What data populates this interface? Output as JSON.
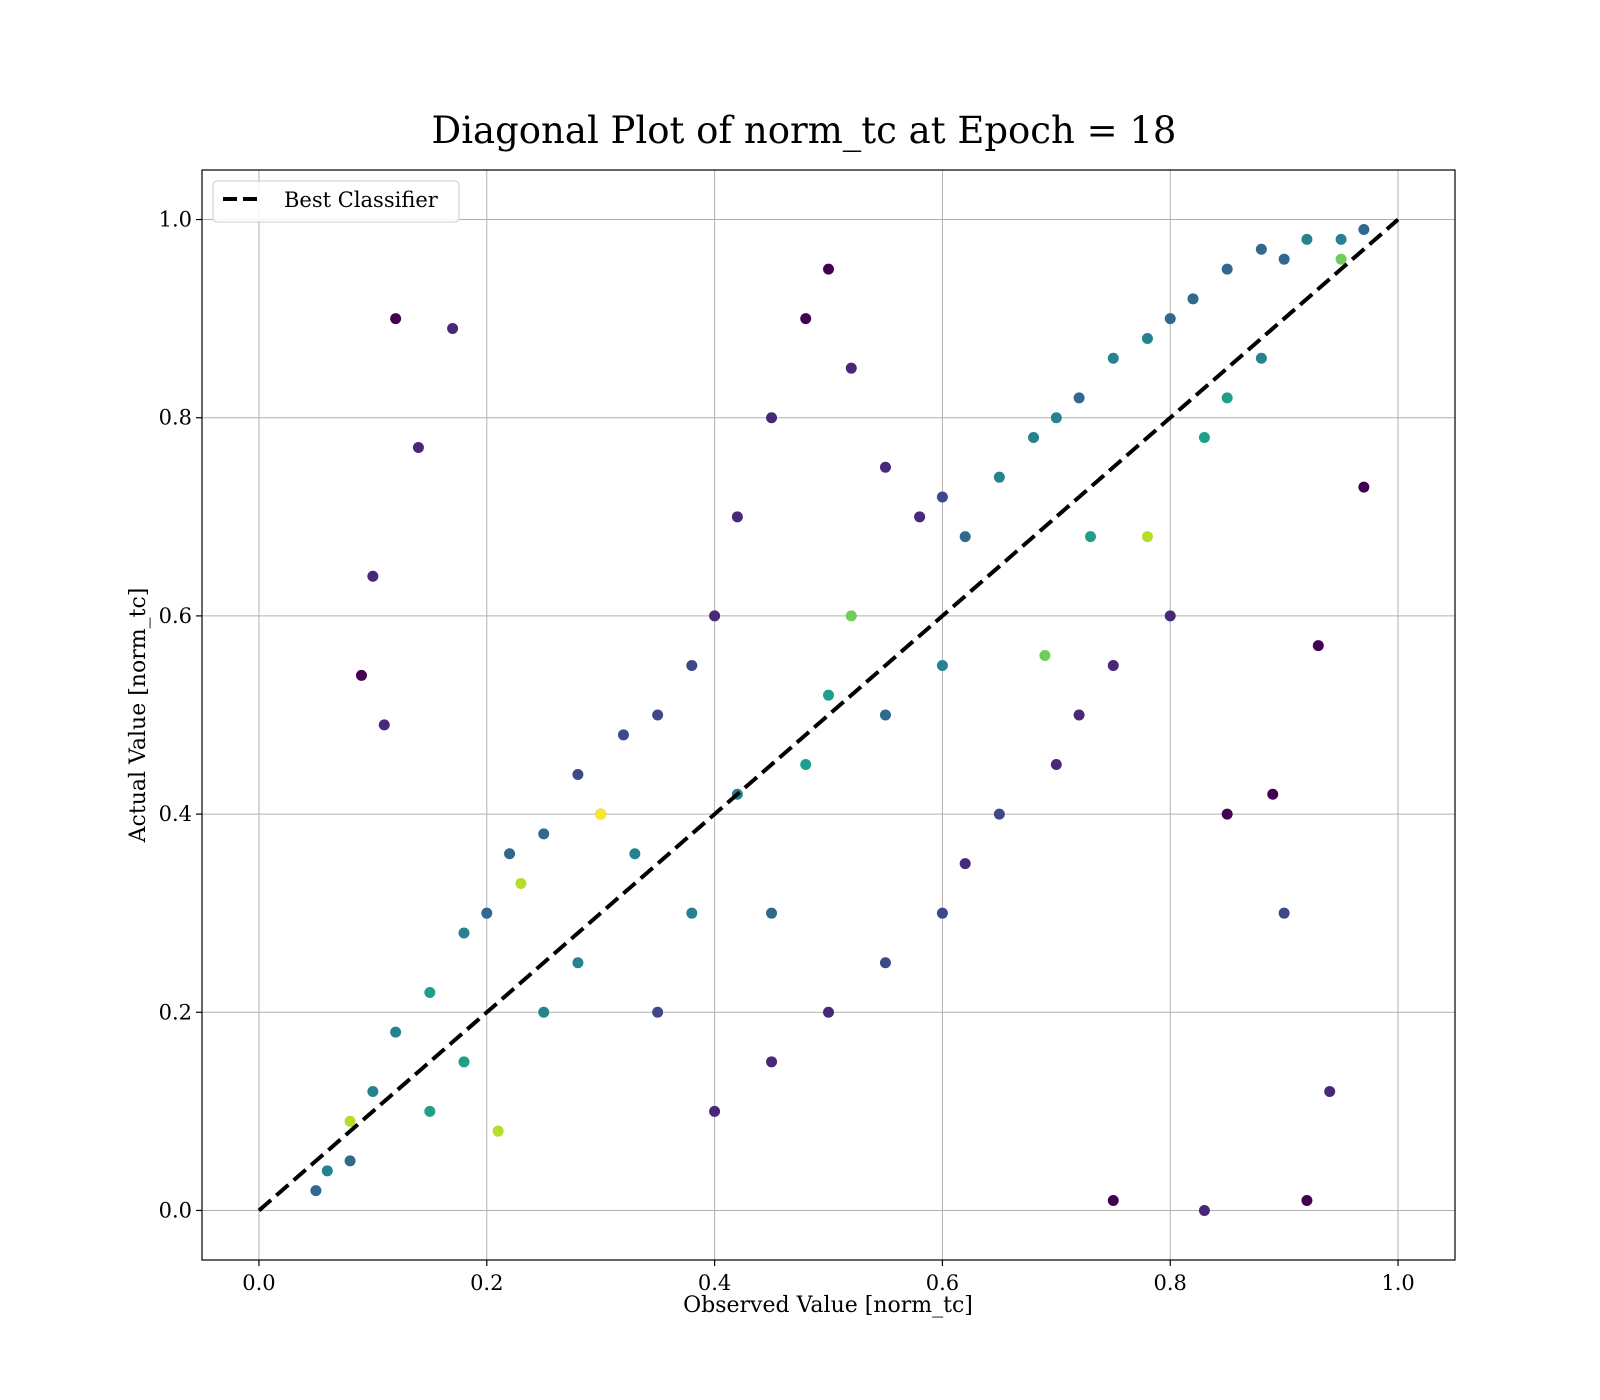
{
  "chart_data": {
    "type": "scatter",
    "title": "Diagonal Plot of norm_tc at Epoch = 18",
    "xlabel": "Observed Value [norm_tc]",
    "ylabel": "Actual Value [norm_tc]",
    "xlim": [
      -0.05,
      1.05
    ],
    "ylim": [
      -0.05,
      1.05
    ],
    "xticks": [
      0.0,
      0.2,
      0.4,
      0.6,
      0.8,
      1.0
    ],
    "yticks": [
      0.0,
      0.2,
      0.4,
      0.6,
      0.8,
      1.0
    ],
    "xtick_labels": [
      "0.0",
      "0.2",
      "0.4",
      "0.6",
      "0.8",
      "1.0"
    ],
    "ytick_labels": [
      "0.0",
      "0.2",
      "0.4",
      "0.6",
      "0.8",
      "1.0"
    ],
    "grid": true,
    "colormap": "viridis",
    "legend": {
      "placement": "upper-left",
      "entries": [
        "Best Classifier"
      ]
    },
    "reference_line": {
      "name": "Best Classifier",
      "x": [
        0.0,
        1.0
      ],
      "y": [
        0.0,
        1.0
      ],
      "style": "dashed",
      "color": "#000000"
    },
    "series": [
      {
        "marker": "circle",
        "points": [
          [
            0.05,
            0.02,
            0.3
          ],
          [
            0.08,
            0.05,
            0.38
          ],
          [
            0.1,
            0.12,
            0.45
          ],
          [
            0.12,
            0.18,
            0.4
          ],
          [
            0.15,
            0.22,
            0.5
          ],
          [
            0.18,
            0.28,
            0.42
          ],
          [
            0.2,
            0.3,
            0.35
          ],
          [
            0.22,
            0.36,
            0.3
          ],
          [
            0.25,
            0.38,
            0.28
          ],
          [
            0.28,
            0.44,
            0.25
          ],
          [
            0.3,
            0.4,
            0.32
          ],
          [
            0.32,
            0.48,
            0.22
          ],
          [
            0.35,
            0.5,
            0.2
          ],
          [
            0.38,
            0.55,
            0.18
          ],
          [
            0.4,
            0.6,
            0.12
          ],
          [
            0.42,
            0.7,
            0.08
          ],
          [
            0.45,
            0.8,
            0.06
          ],
          [
            0.48,
            0.9,
            0.05
          ],
          [
            0.5,
            0.95,
            0.04
          ],
          [
            0.52,
            0.85,
            0.06
          ],
          [
            0.55,
            0.75,
            0.1
          ],
          [
            0.58,
            0.7,
            0.15
          ],
          [
            0.6,
            0.72,
            0.25
          ],
          [
            0.62,
            0.68,
            0.35
          ],
          [
            0.65,
            0.74,
            0.4
          ],
          [
            0.68,
            0.78,
            0.45
          ],
          [
            0.7,
            0.8,
            0.42
          ],
          [
            0.72,
            0.82,
            0.38
          ],
          [
            0.75,
            0.86,
            0.4
          ],
          [
            0.78,
            0.88,
            0.45
          ],
          [
            0.8,
            0.9,
            0.35
          ],
          [
            0.82,
            0.92,
            0.3
          ],
          [
            0.85,
            0.95,
            0.28
          ],
          [
            0.88,
            0.97,
            0.32
          ],
          [
            0.9,
            0.96,
            0.38
          ],
          [
            0.92,
            0.98,
            0.4
          ],
          [
            0.95,
            0.98,
            0.42
          ],
          [
            0.97,
            0.99,
            0.35
          ],
          [
            0.4,
            0.1,
            0.1
          ],
          [
            0.45,
            0.15,
            0.08
          ],
          [
            0.5,
            0.2,
            0.12
          ],
          [
            0.55,
            0.25,
            0.18
          ],
          [
            0.6,
            0.3,
            0.2
          ],
          [
            0.62,
            0.35,
            0.15
          ],
          [
            0.65,
            0.4,
            0.22
          ],
          [
            0.7,
            0.45,
            0.1
          ],
          [
            0.72,
            0.5,
            0.08
          ],
          [
            0.75,
            0.55,
            0.12
          ],
          [
            0.8,
            0.6,
            0.15
          ],
          [
            0.85,
            0.4,
            0.05
          ],
          [
            0.78,
            0.68,
            0.92
          ],
          [
            0.3,
            0.4,
            0.95
          ],
          [
            0.08,
            0.09,
            0.9
          ],
          [
            0.21,
            0.08,
            0.92
          ],
          [
            0.23,
            0.33,
            0.88
          ],
          [
            0.69,
            0.56,
            0.8
          ],
          [
            0.52,
            0.6,
            0.75
          ],
          [
            0.95,
            0.96,
            0.78
          ],
          [
            0.12,
            0.9,
            0.05
          ],
          [
            0.17,
            0.89,
            0.06
          ],
          [
            0.1,
            0.64,
            0.08
          ],
          [
            0.09,
            0.54,
            0.04
          ],
          [
            0.14,
            0.77,
            0.1
          ],
          [
            0.11,
            0.49,
            0.06
          ],
          [
            0.97,
            0.73,
            0.03
          ],
          [
            0.93,
            0.57,
            0.05
          ],
          [
            0.92,
            0.01,
            0.04
          ],
          [
            0.94,
            0.12,
            0.1
          ],
          [
            0.89,
            0.42,
            0.02
          ],
          [
            0.9,
            0.3,
            0.2
          ],
          [
            0.83,
            0.0,
            0.12
          ],
          [
            0.75,
            0.01,
            0.05
          ],
          [
            0.55,
            0.5,
            0.3
          ],
          [
            0.6,
            0.55,
            0.4
          ],
          [
            0.35,
            0.2,
            0.25
          ],
          [
            0.45,
            0.3,
            0.3
          ],
          [
            0.48,
            0.45,
            0.5
          ],
          [
            0.5,
            0.52,
            0.55
          ],
          [
            0.42,
            0.42,
            0.45
          ],
          [
            0.38,
            0.3,
            0.4
          ],
          [
            0.15,
            0.1,
            0.55
          ],
          [
            0.18,
            0.15,
            0.5
          ],
          [
            0.06,
            0.04,
            0.4
          ],
          [
            0.25,
            0.2,
            0.45
          ],
          [
            0.28,
            0.25,
            0.48
          ],
          [
            0.33,
            0.36,
            0.4
          ],
          [
            0.85,
            0.82,
            0.5
          ],
          [
            0.88,
            0.86,
            0.48
          ],
          [
            0.83,
            0.78,
            0.55
          ],
          [
            0.73,
            0.68,
            0.52
          ]
        ]
      }
    ]
  }
}
